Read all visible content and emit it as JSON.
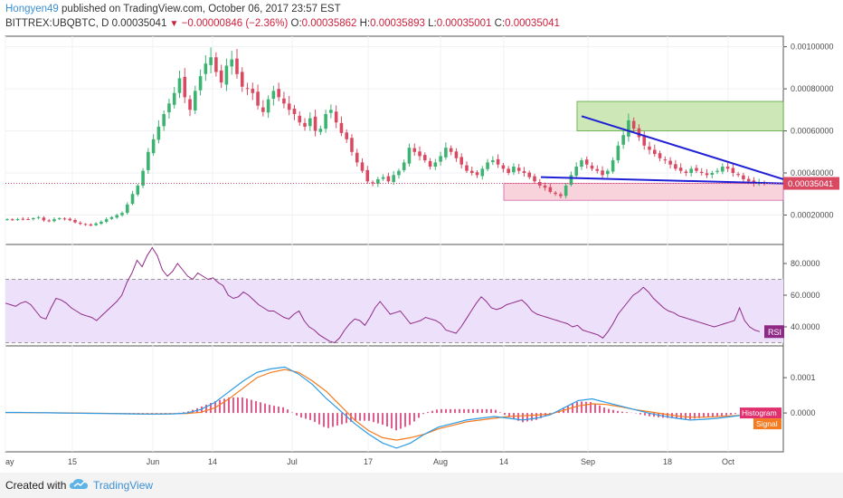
{
  "header": {
    "author": "Hongyen49",
    "published_text": "published on TradingView.com, October 06, 2017 23:57 EST",
    "symbol": "BITTREX:UBQBTC, D",
    "last": "0.00035041",
    "change_icon": "triangle-down-icon",
    "change": "−0.00000846 (−2.36%)",
    "o_label": "O:",
    "o_value": "0.00035862",
    "h_label": "H:",
    "h_value": "0.00035893",
    "l_label": "L:",
    "l_value": "0.00035001",
    "c_label": "C:",
    "c_value": "0.00035041"
  },
  "footer": {
    "created_with": "Created with",
    "brand": "TradingView",
    "logo_icon": "tradingview-cloud-icon"
  },
  "colors": {
    "up": "#3cb371",
    "down": "#d94a62",
    "rsi_line": "#8e2a86",
    "rsi_band": "#ede0fb",
    "macd_line": "#2b9be5",
    "signal_line": "#f47b20",
    "histogram": "#e0306e",
    "trendline": "#1f1fd6",
    "target_zone": "#cde8b6",
    "stop_zone": "#f9d3dc"
  },
  "chart_data": [
    {
      "type": "candlestick",
      "pane": "price",
      "x_ticks": [
        "ay",
        "15",
        "Jun",
        "14",
        "Jul",
        "17",
        "Aug",
        "14",
        "Sep",
        "18",
        "Oct"
      ],
      "y_ticks": [
        "0.00100000",
        "0.00080000",
        "0.00060000",
        "0.00040000",
        "0.00020000"
      ],
      "ylim": [
        6e-05,
        0.00105
      ],
      "last_price_label": "0.00035041",
      "close_series": [
        0.00018,
        0.000178,
        0.00018,
        0.000182,
        0.00018,
        0.000185,
        0.00019,
        0.000175,
        0.00017,
        0.00018,
        0.000185,
        0.000182,
        0.000175,
        0.000165,
        0.000158,
        0.000155,
        0.00015,
        0.00016,
        0.000168,
        0.00018,
        0.00019,
        0.0002,
        0.00021,
        0.00025,
        0.0003,
        0.00034,
        0.00041,
        0.0005,
        0.00056,
        0.00062,
        0.00068,
        0.00073,
        0.00078,
        0.00085,
        0.00076,
        0.0007,
        0.00079,
        0.00086,
        0.00092,
        0.00095,
        0.00088,
        0.00083,
        0.00091,
        0.00094,
        0.00087,
        0.00081,
        0.0008,
        0.00078,
        0.00072,
        0.00069,
        0.00075,
        0.00079,
        0.00076,
        0.00073,
        0.0007,
        0.00068,
        0.00064,
        0.00062,
        0.00066,
        0.0006,
        0.00061,
        0.00068,
        0.0007,
        0.00064,
        0.00059,
        0.00056,
        0.0005,
        0.00045,
        0.00041,
        0.00036,
        0.00035,
        0.00037,
        0.00038,
        0.00036,
        0.00039,
        0.00041,
        0.00045,
        0.00052,
        0.0005,
        0.00048,
        0.00046,
        0.00043,
        0.00045,
        0.00048,
        0.00052,
        0.0005,
        0.00047,
        0.00044,
        0.00041,
        0.0004,
        0.00039,
        0.00042,
        0.00045,
        0.00046,
        0.00044,
        0.00042,
        0.0004,
        0.00043,
        0.00041,
        0.0004,
        0.00038,
        0.00036,
        0.00034,
        0.00033,
        0.00031,
        0.0003,
        0.00029,
        0.00034,
        0.00039,
        0.00043,
        0.00046,
        0.00044,
        0.00042,
        0.00041,
        0.00039,
        0.00041,
        0.00046,
        0.00053,
        0.00058,
        0.00065,
        0.00061,
        0.00057,
        0.00053,
        0.00051,
        0.00049,
        0.00047,
        0.00046,
        0.00044,
        0.00042,
        0.00041,
        0.0004,
        0.00042,
        0.00041,
        0.0004,
        0.00039,
        0.0004,
        0.00041,
        0.00043,
        0.00042,
        0.0004,
        0.00039,
        0.00037,
        0.00036,
        0.00035,
        0.000355,
        0.00035041
      ],
      "annotations": [
        {
          "type": "target_zone",
          "from": 0.0006,
          "to": 0.00074
        },
        {
          "type": "stop_zone",
          "from": 0.00027,
          "to": 0.00035
        },
        {
          "type": "descending_trendline",
          "from": 0.00067,
          "to": 0.00037
        },
        {
          "type": "support_trendline",
          "from": 0.00038,
          "to": 0.00035
        }
      ]
    },
    {
      "type": "line",
      "pane": "rsi",
      "label": "RSI",
      "y_ticks": [
        "80.0000",
        "60.0000",
        "40.0000"
      ],
      "ylim": [
        28,
        92
      ],
      "band": [
        30,
        70
      ],
      "values": [
        55,
        54,
        53,
        55,
        56,
        54,
        50,
        46,
        45,
        52,
        58,
        57,
        55,
        52,
        50,
        48,
        47,
        46,
        44,
        47,
        50,
        53,
        56,
        60,
        68,
        74,
        82,
        78,
        85,
        90,
        85,
        76,
        72,
        75,
        80,
        76,
        72,
        70,
        74,
        72,
        70,
        71,
        68,
        66,
        60,
        58,
        59,
        62,
        60,
        57,
        54,
        52,
        50,
        50,
        48,
        46,
        45,
        48,
        50,
        44,
        40,
        38,
        35,
        33,
        31,
        30,
        33,
        38,
        42,
        45,
        44,
        41,
        46,
        52,
        56,
        52,
        48,
        49,
        50,
        46,
        42,
        43,
        44,
        46,
        45,
        44,
        42,
        38,
        37,
        36,
        40,
        45,
        50,
        55,
        59,
        56,
        52,
        51,
        52,
        54,
        55,
        56,
        57,
        54,
        50,
        48,
        47,
        46,
        45,
        44,
        43,
        42,
        40,
        41,
        38,
        37,
        36,
        35,
        33,
        37,
        42,
        48,
        52,
        56,
        60,
        62,
        65,
        62,
        58,
        55,
        52,
        50,
        49,
        47,
        46,
        45,
        44,
        43,
        42,
        41,
        40,
        41,
        42,
        43,
        44,
        52,
        44,
        40,
        38,
        37
      ]
    },
    {
      "type": "line",
      "pane": "macd",
      "y_ticks": [
        "0.0001",
        "0.0000"
      ],
      "ylim": [
        -0.00011,
        0.00019
      ],
      "legend_labels": [
        "Histogram",
        "Signal"
      ],
      "macd": [
        1.5e-06,
        1.5e-06,
        1e-06,
        5e-07,
        0,
        -5e-07,
        -1e-06,
        -1.5e-06,
        -2e-06,
        -2.5e-06,
        -3e-06,
        -3e-06,
        -2.5e-06,
        0,
        1e-05,
        3e-05,
        6e-05,
        9e-05,
        0.000115,
        0.000125,
        0.00013,
        0.00011,
        8e-05,
        4e-05,
        5e-06,
        -3e-05,
        -6e-05,
        -8.5e-05,
        -9.95e-05,
        -8.5e-05,
        -6e-05,
        -4e-05,
        -3e-05,
        -2e-05,
        -1.5e-05,
        -1e-05,
        -1.5e-05,
        -2e-05,
        -1.5e-05,
        -5e-06,
        1.5e-05,
        3.5e-05,
        4e-05,
        3e-05,
        2e-05,
        1e-05,
        0,
        -8e-06,
        -1.5e-05,
        -2e-05,
        -1.8e-05,
        -1.5e-05,
        -1e-05,
        -5e-06,
        -3e-06
      ],
      "signal": [
        1e-06,
        1e-06,
        8e-07,
        5e-07,
        2e-07,
        0,
        -5e-07,
        -1e-06,
        -1.5e-06,
        -2e-06,
        -2.5e-06,
        -2.5e-06,
        -2e-06,
        -1.5e-06,
        2e-06,
        1.5e-05,
        4e-05,
        7e-05,
        0.0001,
        0.000115,
        0.000123,
        0.000115,
        9e-05,
        6e-05,
        2e-05,
        -2e-05,
        -5e-05,
        -7e-05,
        -7.7e-05,
        -7e-05,
        -6e-05,
        -4.5e-05,
        -3.5e-05,
        -2.5e-05,
        -2e-05,
        -1.5e-05,
        -1e-05,
        -8e-06,
        -6e-06,
        -3e-06,
        8e-06,
        2e-05,
        2.6e-05,
        2.4e-05,
        1.8e-05,
        1e-05,
        4e-06,
        -2e-06,
        -8e-06,
        -1.2e-05,
        -1.2e-05,
        -1e-05,
        -8e-06,
        -6e-06,
        -5e-06
      ]
    }
  ]
}
